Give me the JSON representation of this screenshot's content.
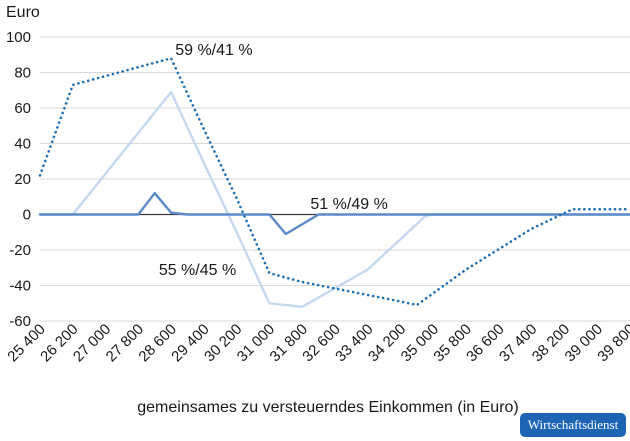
{
  "chart_data": {
    "type": "line",
    "ylabel": "Euro",
    "xlabel": "gemeinsames zu versteuerndes Einkommen (in Euro)",
    "ylim": [
      -60,
      100
    ],
    "yticks": [
      100,
      80,
      60,
      40,
      20,
      0,
      -20,
      -40,
      -60
    ],
    "categories": [
      "25 400",
      "26 200",
      "27 000",
      "27 800",
      "28 600",
      "29 400",
      "30 200",
      "31 000",
      "31 800",
      "32 600",
      "33 400",
      "34 200",
      "35 000",
      "35 800",
      "36 600",
      "37 400",
      "38 200",
      "39 000",
      "39 800"
    ],
    "grid": "horizontal",
    "series": [
      {
        "name": "59 %/41 %",
        "style": "dotted",
        "color": "#1f6fb5",
        "x": [
          25400,
          26200,
          28600,
          29400,
          30200,
          31000,
          31800,
          34200,
          34600,
          35800,
          37400,
          38400,
          39800
        ],
        "y": [
          22,
          73,
          88,
          48,
          9,
          -33,
          -38,
          -49,
          -51,
          -31,
          -8,
          3,
          3
        ]
      },
      {
        "name": "55 %/45 %",
        "style": "solid",
        "color": "#c5d8ef",
        "x": [
          25400,
          26200,
          28600,
          29400,
          30200,
          31000,
          31800,
          33400,
          34800,
          35000,
          39800
        ],
        "y": [
          0,
          0,
          69,
          29,
          -10,
          -50,
          -52,
          -31,
          -1,
          0,
          0
        ]
      },
      {
        "name": "51 %/49 %",
        "style": "solid",
        "color": "#5b8ac9",
        "x": [
          25400,
          27800,
          28200,
          28600,
          29000,
          29400,
          30200,
          31000,
          31400,
          32200,
          35000,
          39800
        ],
        "y": [
          0,
          0,
          12,
          1,
          0,
          0,
          0,
          0,
          -11,
          0,
          0,
          0
        ]
      }
    ],
    "annotations": [
      {
        "text": "59 %/41 %",
        "x": 28700,
        "y": 90
      },
      {
        "text": "51 %/49 %",
        "x": 32000,
        "y": 3
      },
      {
        "text": "55 %/45 %",
        "x": 28300,
        "y": -34
      }
    ]
  },
  "badge": "Wirtschaftsdienst"
}
